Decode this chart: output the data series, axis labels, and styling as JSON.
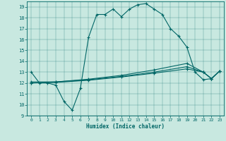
{
  "title": "",
  "xlabel": "Humidex (Indice chaleur)",
  "ylabel": "",
  "bg_color": "#c8e8e0",
  "line_color": "#006666",
  "xlim": [
    -0.5,
    23.5
  ],
  "ylim": [
    9,
    19.5
  ],
  "xticks": [
    0,
    1,
    2,
    3,
    4,
    5,
    6,
    7,
    8,
    9,
    10,
    11,
    12,
    13,
    14,
    15,
    16,
    17,
    18,
    19,
    20,
    21,
    22,
    23
  ],
  "yticks": [
    9,
    10,
    11,
    12,
    13,
    14,
    15,
    16,
    17,
    18,
    19
  ],
  "line1_x": [
    0,
    1,
    2,
    3,
    4,
    5,
    6,
    7,
    8,
    9,
    10,
    11,
    12,
    13,
    14,
    15,
    16,
    17,
    18,
    19,
    20,
    21,
    22,
    23
  ],
  "line1_y": [
    13,
    12,
    12,
    11.8,
    10.3,
    9.5,
    11.5,
    16.2,
    18.3,
    18.3,
    18.8,
    18.1,
    18.8,
    19.2,
    19.3,
    18.8,
    18.3,
    17.0,
    16.3,
    15.3,
    13.0,
    12.3,
    12.4,
    13.1
  ],
  "line2_x": [
    0,
    3,
    7,
    11,
    15,
    19,
    21,
    22,
    23
  ],
  "line2_y": [
    12.0,
    12.1,
    12.35,
    12.7,
    13.2,
    13.8,
    13.0,
    12.4,
    13.1
  ],
  "line3_x": [
    0,
    3,
    7,
    11,
    15,
    19,
    21,
    22,
    23
  ],
  "line3_y": [
    12.0,
    12.05,
    12.25,
    12.55,
    12.9,
    13.3,
    13.0,
    12.4,
    13.1
  ],
  "line4_x": [
    0,
    3,
    7,
    11,
    15,
    19,
    21,
    22,
    23
  ],
  "line4_y": [
    12.1,
    12.1,
    12.3,
    12.6,
    13.0,
    13.5,
    13.0,
    12.4,
    13.1
  ],
  "marker": "+",
  "markersize": 3,
  "linewidth": 0.8
}
